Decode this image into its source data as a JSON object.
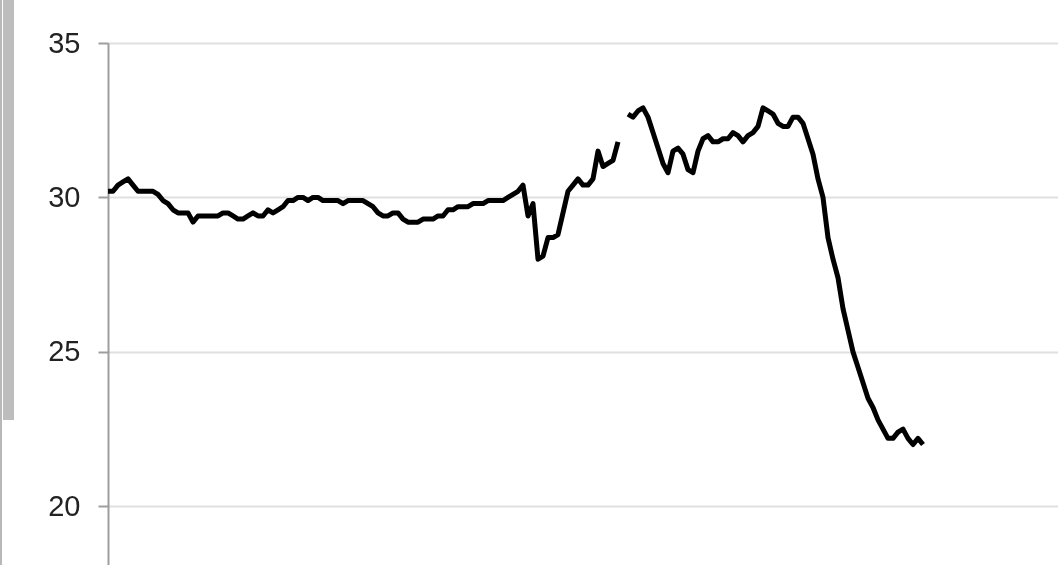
{
  "chart_data": {
    "type": "line",
    "categories": [
      null,
      null,
      null,
      null,
      null,
      null,
      null,
      null,
      null,
      null,
      null,
      null,
      null,
      null,
      null,
      null,
      null,
      null,
      null,
      null,
      null,
      null,
      null,
      null,
      null,
      null,
      null,
      null,
      null,
      null,
      null,
      null,
      null,
      null,
      null,
      null,
      null,
      null,
      null,
      null,
      null,
      null,
      null,
      null,
      null,
      null,
      null,
      null,
      null,
      null,
      null,
      null,
      null,
      null,
      null,
      null,
      null,
      null,
      null,
      null,
      null,
      null,
      null,
      null,
      null,
      null,
      null,
      null,
      null,
      null,
      null,
      null,
      null,
      null,
      null,
      null,
      null,
      null,
      null,
      null,
      null,
      null,
      null,
      null,
      null,
      null,
      null,
      null,
      null,
      null,
      null,
      null,
      null,
      null,
      null,
      null,
      null,
      null,
      null,
      null,
      null,
      null,
      null,
      null,
      null,
      null,
      null,
      null,
      null,
      null,
      null,
      null,
      null,
      null,
      null,
      null,
      null,
      null,
      null,
      null,
      null,
      null,
      null,
      null,
      null,
      null,
      null,
      null,
      null,
      null,
      null,
      null,
      null,
      null,
      null,
      null,
      null,
      null,
      null,
      null,
      null,
      null,
      null,
      null,
      null,
      null,
      null,
      null,
      null,
      null,
      null,
      null,
      null,
      null,
      null,
      null,
      null,
      null,
      null,
      null,
      null,
      null,
      null,
      null,
      null,
      null,
      null,
      null,
      null,
      null,
      null,
      null,
      null,
      null,
      null,
      null,
      null,
      null,
      null,
      null,
      null,
      null,
      null,
      null,
      null,
      null,
      null,
      null,
      null,
      null,
      null
    ],
    "series": [
      {
        "color": "#000000",
        "values": [
          30.2,
          30.2,
          30.4,
          30.5,
          30.6,
          30.4,
          30.2,
          30.2,
          30.2,
          30.2,
          30.1,
          29.9,
          29.8,
          29.6,
          29.5,
          29.5,
          29.5,
          29.2,
          29.4,
          29.4,
          29.4,
          29.4,
          29.4,
          29.5,
          29.5,
          29.4,
          29.3,
          29.3,
          29.4,
          29.5,
          29.4,
          29.4,
          29.6,
          29.5,
          29.6,
          29.7,
          29.9,
          29.9,
          30.0,
          30.0,
          29.9,
          30.0,
          30.0,
          29.9,
          29.9,
          29.9,
          29.9,
          29.8,
          29.9,
          29.9,
          29.9,
          29.9,
          29.8,
          29.7,
          29.5,
          29.4,
          29.4,
          29.5,
          29.5,
          29.3,
          29.2,
          29.2,
          29.2,
          29.3,
          29.3,
          29.3,
          29.4,
          29.4,
          29.6,
          29.6,
          29.7,
          29.7,
          29.7,
          29.8,
          29.8,
          29.8,
          29.9,
          29.9,
          29.9,
          29.9,
          30.0,
          30.1,
          30.2,
          30.4,
          29.4,
          29.8,
          28.0,
          28.1,
          28.7,
          28.7,
          28.8,
          29.5,
          30.2,
          30.4,
          30.6,
          30.4,
          30.4,
          30.6,
          31.5,
          31.0,
          31.1,
          31.2,
          31.8,
          null,
          null,
          null,
          null,
          null,
          null,
          null,
          null,
          null,
          null,
          null,
          null,
          null,
          null,
          null,
          null,
          null,
          null,
          null,
          null,
          null,
          null,
          null,
          null,
          null,
          null,
          null,
          null,
          null,
          null,
          null,
          null,
          null,
          null,
          null,
          null,
          null,
          null,
          null,
          null,
          null,
          null,
          null,
          null,
          null,
          null,
          null,
          null,
          null,
          null,
          null,
          null,
          null,
          null,
          null,
          null,
          null,
          null,
          null,
          null,
          null,
          null,
          null,
          null,
          null,
          null,
          null,
          null,
          null,
          null,
          null,
          null,
          null,
          null,
          null,
          null,
          null,
          null,
          null,
          null,
          null,
          null,
          null,
          null,
          null,
          null,
          null,
          null
        ]
      },
      {
        "color": "#000000",
        "values": [
          null,
          null,
          null,
          null,
          null,
          null,
          null,
          null,
          null,
          null,
          null,
          null,
          null,
          null,
          null,
          null,
          null,
          null,
          null,
          null,
          null,
          null,
          null,
          null,
          null,
          null,
          null,
          null,
          null,
          null,
          null,
          null,
          null,
          null,
          null,
          null,
          null,
          null,
          null,
          null,
          null,
          null,
          null,
          null,
          null,
          null,
          null,
          null,
          null,
          null,
          null,
          null,
          null,
          null,
          null,
          null,
          null,
          null,
          null,
          null,
          null,
          null,
          null,
          null,
          null,
          null,
          null,
          null,
          null,
          null,
          null,
          null,
          null,
          null,
          null,
          null,
          null,
          null,
          null,
          null,
          null,
          null,
          null,
          null,
          null,
          null,
          null,
          null,
          null,
          null,
          null,
          null,
          null,
          null,
          null,
          null,
          null,
          null,
          null,
          null,
          null,
          null,
          null,
          null,
          32.7,
          32.6,
          32.8,
          32.9,
          32.6,
          32.1,
          31.6,
          31.1,
          30.8,
          31.5,
          31.6,
          31.4,
          30.9,
          30.8,
          31.5,
          31.9,
          32.0,
          31.8,
          31.8,
          31.9,
          31.9,
          32.1,
          32.0,
          31.8,
          32.0,
          32.1,
          32.3,
          32.9,
          32.8,
          32.7,
          32.4,
          32.3,
          32.3,
          32.6,
          32.6,
          32.4,
          31.9,
          31.4,
          30.6,
          30.0,
          28.7,
          28.0,
          27.4,
          26.4,
          25.7,
          25.0,
          24.5,
          24.0,
          23.5,
          23.2,
          22.8,
          22.5,
          22.2,
          22.2,
          22.4,
          22.5,
          22.2,
          22.0,
          22.2,
          22.0,
          null,
          null,
          null,
          null,
          null,
          null,
          null,
          null,
          null,
          null,
          null,
          null,
          null,
          null,
          null,
          null,
          null,
          null,
          null,
          null,
          null,
          null,
          null,
          null,
          null,
          null,
          null
        ]
      }
    ],
    "ylim": [
      18.1,
      35
    ],
    "yticks": [
      20,
      25,
      30,
      35
    ],
    "grid": "y",
    "tick_labels": "y",
    "line_style": "solid"
  }
}
